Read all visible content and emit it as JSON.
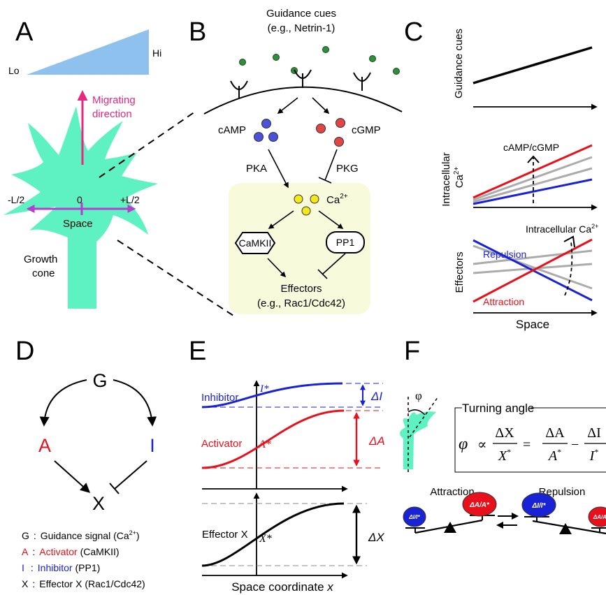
{
  "panels": {
    "A": {
      "label": "A",
      "gradient_lo": "Lo",
      "gradient_hi": "Hi",
      "migrating_line1": "Migrating",
      "migrating_line2": "direction",
      "axis_left": "-L/2",
      "axis_zero": "0",
      "axis_right": "+L/2",
      "axis_name": "Space",
      "growth_line1": "Growth",
      "growth_line2": "cone"
    },
    "B": {
      "label": "B",
      "cues_line1": "Guidance cues",
      "cues_line2": "(e.g., Netrin-1)",
      "camp": "cAMP",
      "cgmp": "cGMP",
      "pka": "PKA",
      "pkg": "PKG",
      "ca": "Ca",
      "ca_sup": "2+",
      "camkii": "CaMKII",
      "pp1": "PP1",
      "effectors_line1": "Effectors",
      "effectors_line2": "(e.g., Rac1/Cdc42)"
    },
    "C": {
      "label": "C",
      "ylabel_top": "Guidance cues",
      "ylabel_mid_line1": "Intracellular",
      "ylabel_mid_line2": "Ca",
      "ylabel_mid_sup": "2+",
      "mid_annotation": "cAMP/cGMP",
      "ylabel_bottom": "Effectors",
      "bottom_annotation": "Intracellular Ca",
      "bottom_annotation_sup": "2+",
      "repulsion": "Repulsion",
      "attraction": "Attraction",
      "xlabel": "Space"
    },
    "D": {
      "label": "D",
      "node_g": "G",
      "node_a": "A",
      "node_i": "I",
      "node_x": "X",
      "legend": [
        {
          "key": "G",
          "sep": ":",
          "text": "Guidance signal (Ca",
          "sup": "2+",
          "tail": ")",
          "color": "#000000"
        },
        {
          "key": "A",
          "sep": ":",
          "text": "Activator",
          "extra": " (CaMKII)",
          "color": "#e8101b"
        },
        {
          "key": "I",
          "sep": ":",
          "text": "Inhibitor",
          "extra": " (PP1)",
          "color": "#1a22d6"
        },
        {
          "key": "X",
          "sep": ":",
          "text": "Effector X (Rac1/Cdc42)",
          "color": "#000000"
        }
      ]
    },
    "E": {
      "label": "E",
      "inhibitor": "Inhibitor",
      "i_star": "I*",
      "delta_i": "ΔI",
      "activator": "Activator",
      "a_star": "A*",
      "delta_a": "ΔA",
      "effector": "Effector X",
      "x_star": "X*",
      "delta_x": "ΔX",
      "xlabel": "Space coordinate",
      "xlabel_var": "x"
    },
    "F": {
      "label": "F",
      "phi": "φ",
      "turning_angle": "Turning angle",
      "eq_phi": "φ",
      "eq_prop": "∝",
      "eq_dx": "ΔX",
      "eq_xs": "X",
      "eq_eq": "=",
      "eq_da": "ΔA",
      "eq_as": "A",
      "eq_minus": "−",
      "eq_di": "ΔI",
      "eq_is": "I",
      "eq_star": "*",
      "attraction": "Attraction",
      "repulsion": "Repulsion",
      "bal_left_small": "ΔI/I*",
      "bal_left_big": "ΔA/A*",
      "bal_right_big": "ΔI/I*",
      "bal_right_small": "ΔA/A*"
    }
  },
  "colors": {
    "cone": "#5ef2c2",
    "gradient": "#8fc1ef",
    "magenta": "#e8287c",
    "purple": "#b43fcf",
    "red": "#e8101b",
    "blue": "#1a22d6",
    "gray": "#ababab",
    "yellow_bg": "#f8fadc",
    "cue_dot": "#2f8f3c",
    "camp_dot": "#4a52d9",
    "cgmp_dot": "#e24545",
    "ca_dot": "#f3e81a"
  }
}
